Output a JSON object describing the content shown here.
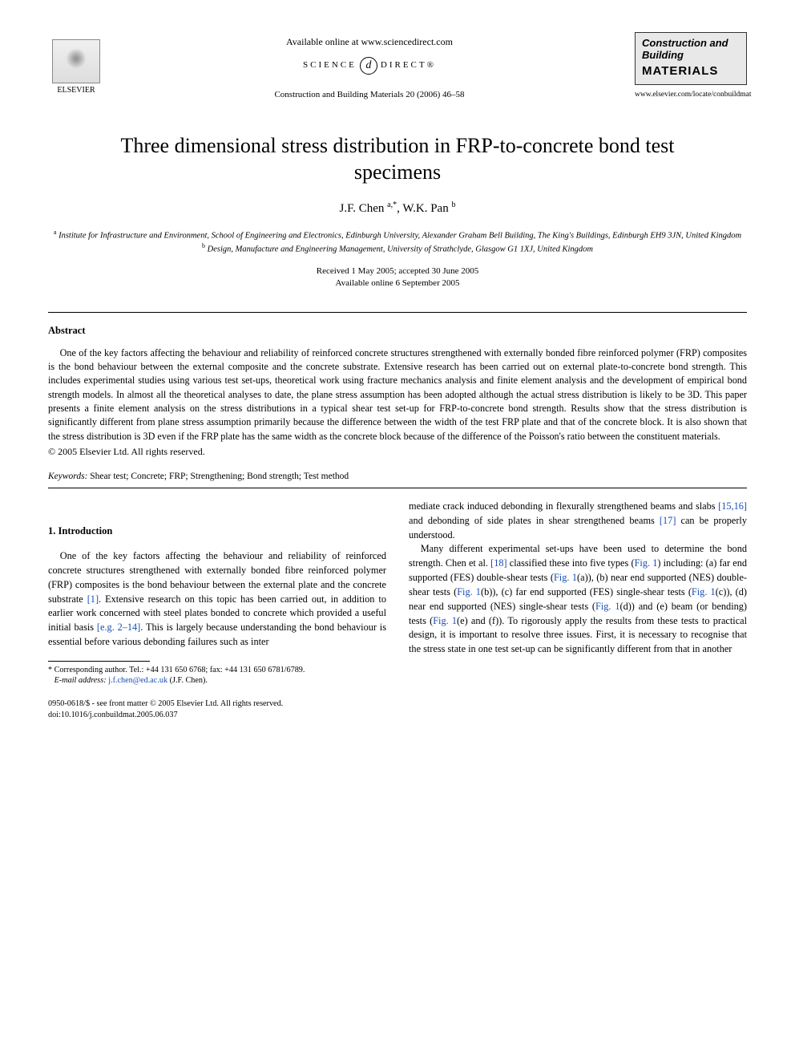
{
  "header": {
    "publisher_name": "ELSEVIER",
    "available_text": "Available online at www.sciencedirect.com",
    "science_direct_left": "SCIENCE",
    "science_direct_d": "d",
    "science_direct_right": "DIRECT®",
    "journal_reference": "Construction and Building Materials 20 (2006) 46–58",
    "journal_logo_top": "Construction and Building",
    "journal_logo_bottom": "MATERIALS",
    "journal_url": "www.elsevier.com/locate/conbuildmat"
  },
  "title": "Three dimensional stress distribution in FRP-to-concrete bond test specimens",
  "authors_line": "J.F. Chen ",
  "authors_sup1": "a,*",
  "authors_sep": ", W.K. Pan ",
  "authors_sup2": "b",
  "affiliations": {
    "a_sup": "a",
    "a_text": " Institute for Infrastructure and Environment, School of Engineering and Electronics, Edinburgh University, Alexander Graham Bell Building, The King's Buildings, Edinburgh EH9 3JN, United Kingdom",
    "b_sup": "b",
    "b_text": " Design, Manufacture and Engineering Management, University of Strathclyde, Glasgow G1 1XJ, United Kingdom"
  },
  "dates": {
    "received": "Received 1 May 2005; accepted 30 June 2005",
    "online": "Available online 6 September 2005"
  },
  "abstract": {
    "heading": "Abstract",
    "body": "One of the key factors affecting the behaviour and reliability of reinforced concrete structures strengthened with externally bonded fibre reinforced polymer (FRP) composites is the bond behaviour between the external composite and the concrete substrate. Extensive research has been carried out on external plate-to-concrete bond strength. This includes experimental studies using various test set-ups, theoretical work using fracture mechanics analysis and finite element analysis and the development of empirical bond strength models. In almost all the theoretical analyses to date, the plane stress assumption has been adopted although the actual stress distribution is likely to be 3D. This paper presents a finite element analysis on the stress distributions in a typical shear test set-up for FRP-to-concrete bond strength. Results show that the stress distribution is significantly different from plane stress assumption primarily because the difference between the width of the test FRP plate and that of the concrete block. It is also shown that the stress distribution is 3D even if the FRP plate has the same width as the concrete block because of the difference of the Poisson's ratio between the constituent materials.",
    "copyright": "© 2005 Elsevier Ltd. All rights reserved."
  },
  "keywords": {
    "label": "Keywords: ",
    "text": "Shear test; Concrete; FRP; Strengthening; Bond strength; Test method"
  },
  "section1": {
    "heading": "1. Introduction",
    "p1_a": "One of the key factors affecting the behaviour and reliability of reinforced concrete structures strengthened with externally bonded fibre reinforced polymer (FRP) composites is the bond behaviour between the external plate and the concrete substrate ",
    "p1_ref1": "[1]",
    "p1_b": ". Extensive research on this topic has been carried out, in addition to earlier work concerned with steel plates bonded to concrete which provided a useful initial basis ",
    "p1_ref2": "[e.g. 2–14]",
    "p1_c": ". This is largely because understanding the bond behaviour is essential before various debonding failures such as inter",
    "p1_d": "mediate crack induced debonding in flexurally strengthened beams and slabs ",
    "p1_ref3": "[15,16]",
    "p1_e": " and debonding of side plates in shear strengthened beams ",
    "p1_ref4": "[17]",
    "p1_f": " can be properly understood.",
    "p2_a": "Many different experimental set-ups have been used to determine the bond strength. Chen et al. ",
    "p2_ref1": "[18]",
    "p2_b": " classified these into five types (",
    "p2_fig1": "Fig. 1",
    "p2_c": ") including: (a) far end supported (FES) double-shear tests (",
    "p2_fig1a": "Fig. 1",
    "p2_d": "(a)), (b) near end supported (NES) double-shear tests (",
    "p2_fig1b": "Fig. 1",
    "p2_e": "(b)), (c) far end supported (FES) single-shear tests (",
    "p2_fig1c": "Fig. 1",
    "p2_f": "(c)), (d) near end supported (NES) single-shear tests (",
    "p2_fig1d": "Fig. 1",
    "p2_g": "(d)) and (e) beam (or bending) tests (",
    "p2_fig1e": "Fig. 1",
    "p2_h": "(e) and (f)). To rigorously apply the results from these tests to practical design, it is important to resolve three issues. First, it is necessary to recognise that the stress state in one test set-up can be significantly different from that in another"
  },
  "footnote": {
    "corr_label": "*",
    "corr_text": " Corresponding author. Tel.: +44 131 650 6768; fax: +44 131 650 6781/6789.",
    "email_label": "E-mail address: ",
    "email": "j.f.chen@ed.ac.uk",
    "email_after": " (J.F. Chen)."
  },
  "bottom": {
    "line1": "0950-0618/$ - see front matter © 2005 Elsevier Ltd. All rights reserved.",
    "line2": "doi:10.1016/j.conbuildmat.2005.06.037"
  },
  "colors": {
    "link": "#1a4db3",
    "text": "#000000",
    "bg": "#ffffff",
    "logo_bg": "#e8e8e8"
  }
}
